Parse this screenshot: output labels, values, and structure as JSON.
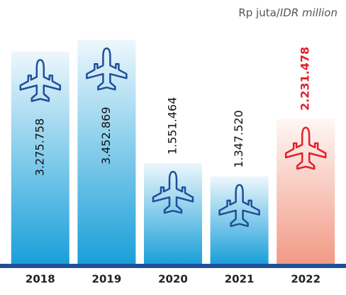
{
  "chart_data": {
    "type": "bar",
    "unit": [
      "Rp juta/",
      "IDR million"
    ],
    "categories": [
      "2018",
      "2019",
      "2020",
      "2021",
      "2022"
    ],
    "values": [
      3275758,
      3452869,
      1551464,
      1347520,
      2231478
    ],
    "value_labels": [
      "3.275.758",
      "3.452.869",
      "1.551.464",
      "1.347.520",
      "2.231.478"
    ],
    "colors": [
      "#1a9fd9",
      "#1a9fd9",
      "#1a9fd9",
      "#1a9fd9",
      "#f29a85"
    ],
    "label_colors": [
      "#111111",
      "#111111",
      "#111111",
      "#111111",
      "#e3202a"
    ],
    "icon_colors": [
      "#1f4f99",
      "#1f4f99",
      "#1f4f99",
      "#1f4f99",
      "#e3202a"
    ],
    "ylim": [
      0,
      3850000
    ]
  }
}
